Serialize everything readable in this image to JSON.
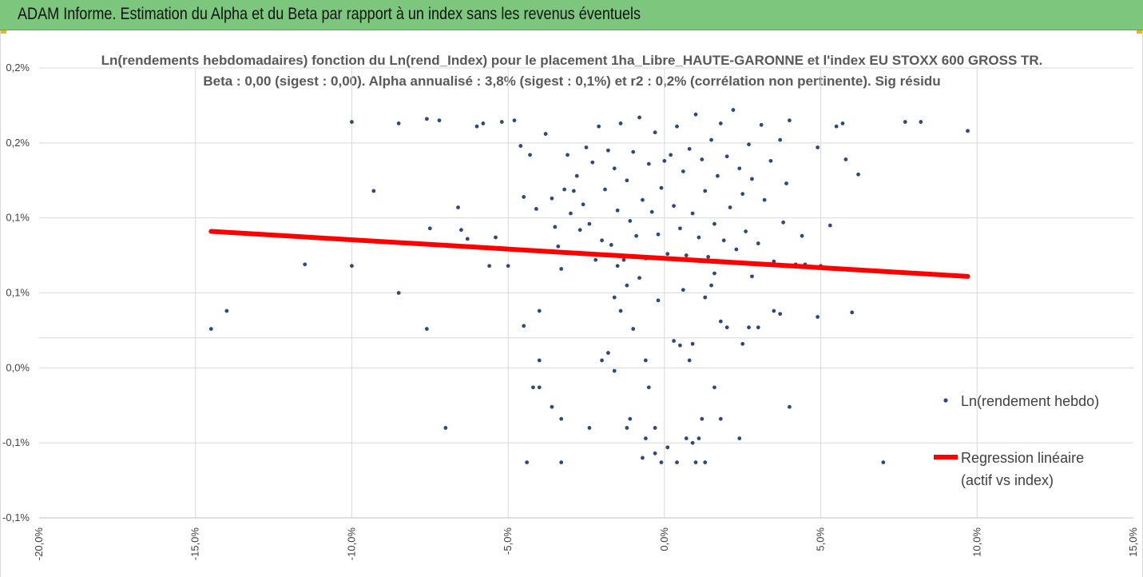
{
  "header": {
    "title": "ADAM Informe. Estimation du Alpha et du Beta par rapport à un index sans les revenus éventuels"
  },
  "colors": {
    "header_bg": "#7dc67d",
    "point": "#2e4a7d",
    "regression": "#ff0000",
    "grid": "#d9d9d9",
    "accent_corner": "#f4b400"
  },
  "chart_data": {
    "type": "scatter",
    "title_lines": [
      "Ln(rendements hebdomadaires) fonction du Ln(rend_Index) pour le placement 1ha_Libre_HAUTE-GARONNE et l'index EU STOXX 600 GROSS TR.",
      "Beta : 0,00 (sigest : 0,00). Alpha annualisé : 3,8% (sigest : 0,1%) et r2 : 0,2% (corrélation non pertinente). Sig résidu"
    ],
    "xlim": [
      -0.2,
      0.15
    ],
    "ylim": [
      -0.001,
      0.002
    ],
    "x_ticks": [
      -0.2,
      -0.15,
      -0.1,
      -0.05,
      0.0,
      0.05,
      0.1,
      0.15
    ],
    "x_tick_labels": [
      "-20,0%",
      "-15,0%",
      "-10,0%",
      "-5,0%",
      "0,0%",
      "5,0%",
      "10,0%",
      "15,0%"
    ],
    "y_ticks": [
      -0.001,
      -0.0005,
      0.0,
      0.0005,
      0.001,
      0.0015,
      0.002
    ],
    "y_tick_labels": [
      "-0,1%",
      "-0,1%",
      "0,0%",
      "0,1%",
      "0,1%",
      "0,2%",
      "0,2%"
    ],
    "x_grid_ticks": [
      -0.15,
      -0.1,
      -0.05,
      0.0,
      0.05,
      0.1
    ],
    "y_grid_extra": [
      0.0002
    ],
    "grid": true,
    "legend_position": "right",
    "series": [
      {
        "name": "Ln(rendement hebdo)",
        "kind": "scatter",
        "points": [
          [
            -0.145,
            0.00026
          ],
          [
            -0.14,
            0.00038
          ],
          [
            -0.115,
            0.00069
          ],
          [
            -0.1,
            0.00068
          ],
          [
            -0.1,
            0.00164
          ],
          [
            -0.093,
            0.00118
          ],
          [
            -0.085,
            0.00163
          ],
          [
            -0.085,
            0.0005
          ],
          [
            -0.076,
            0.00166
          ],
          [
            -0.075,
            0.00093
          ],
          [
            -0.076,
            0.00026
          ],
          [
            -0.072,
            0.00165
          ],
          [
            -0.066,
            0.00107
          ],
          [
            -0.065,
            0.00092
          ],
          [
            -0.063,
            0.00086
          ],
          [
            -0.06,
            0.00161
          ],
          [
            -0.058,
            0.00163
          ],
          [
            -0.056,
            0.00068
          ],
          [
            -0.054,
            0.00087
          ],
          [
            -0.052,
            0.00164
          ],
          [
            -0.05,
            0.00068
          ],
          [
            -0.048,
            0.00165
          ],
          [
            -0.046,
            0.00148
          ],
          [
            -0.045,
            0.00114
          ],
          [
            -0.043,
            0.00142
          ],
          [
            -0.041,
            0.00106
          ],
          [
            -0.04,
            0.00038
          ],
          [
            -0.038,
            0.00156
          ],
          [
            -0.036,
            0.00113
          ],
          [
            -0.035,
            0.00094
          ],
          [
            -0.034,
            0.00081
          ],
          [
            -0.033,
            0.00066
          ],
          [
            -0.032,
            0.00119
          ],
          [
            -0.031,
            0.00142
          ],
          [
            -0.03,
            0.00103
          ],
          [
            -0.029,
            0.00118
          ],
          [
            -0.028,
            0.00128
          ],
          [
            -0.027,
            0.00092
          ],
          [
            -0.026,
            0.00109
          ],
          [
            -0.025,
            0.00147
          ],
          [
            -0.024,
            0.00096
          ],
          [
            -0.023,
            0.00137
          ],
          [
            -0.022,
            0.00072
          ],
          [
            -0.021,
            0.00161
          ],
          [
            -0.02,
            0.00085
          ],
          [
            -0.019,
            0.00119
          ],
          [
            -0.018,
            0.00145
          ],
          [
            -0.017,
            0.00082
          ],
          [
            -0.016,
            0.00133
          ],
          [
            -0.015,
            0.00105
          ],
          [
            -0.014,
            0.00163
          ],
          [
            -0.013,
            0.00072
          ],
          [
            -0.012,
            0.00125
          ],
          [
            -0.011,
            0.00098
          ],
          [
            -0.01,
            0.00144
          ],
          [
            -0.009,
            0.00088
          ],
          [
            -0.008,
            0.00167
          ],
          [
            -0.007,
            0.00112
          ],
          [
            -0.006,
            0.00073
          ],
          [
            -0.005,
            0.00136
          ],
          [
            -0.004,
            0.00104
          ],
          [
            -0.003,
            0.00157
          ],
          [
            -0.002,
            0.00089
          ],
          [
            -0.001,
            0.0012
          ],
          [
            0.0,
            0.00138
          ],
          [
            0.001,
            0.00076
          ],
          [
            0.002,
            0.00142
          ],
          [
            0.003,
            0.00108
          ],
          [
            0.004,
            0.00161
          ],
          [
            0.005,
            0.00093
          ],
          [
            0.006,
            0.00131
          ],
          [
            0.007,
            0.00075
          ],
          [
            0.008,
            0.00146
          ],
          [
            0.009,
            0.00103
          ],
          [
            0.01,
            0.00169
          ],
          [
            0.011,
            0.00087
          ],
          [
            0.012,
            0.00139
          ],
          [
            0.013,
            0.00118
          ],
          [
            0.014,
            0.00074
          ],
          [
            0.015,
            0.00152
          ],
          [
            0.016,
            0.00096
          ],
          [
            0.017,
            0.00128
          ],
          [
            0.018,
            0.00163
          ],
          [
            0.019,
            0.00085
          ],
          [
            0.02,
            0.00141
          ],
          [
            0.021,
            0.00107
          ],
          [
            0.022,
            0.00172
          ],
          [
            0.023,
            0.00079
          ],
          [
            0.024,
            0.00133
          ],
          [
            0.025,
            0.00116
          ],
          [
            0.026,
            0.00091
          ],
          [
            0.027,
            0.00149
          ],
          [
            0.028,
            0.00126
          ],
          [
            0.03,
            0.00083
          ],
          [
            0.031,
            0.00162
          ],
          [
            0.032,
            0.00112
          ],
          [
            0.034,
            0.00138
          ],
          [
            0.035,
            0.00071
          ],
          [
            0.037,
            0.00152
          ],
          [
            0.038,
            0.00097
          ],
          [
            0.039,
            0.00123
          ],
          [
            0.04,
            0.00165
          ],
          [
            0.042,
            0.00069
          ],
          [
            0.044,
            0.00088
          ],
          [
            0.045,
            0.00069
          ],
          [
            0.049,
            0.00034
          ],
          [
            0.049,
            0.00147
          ],
          [
            0.05,
            0.00068
          ],
          [
            0.053,
            0.00095
          ],
          [
            0.055,
            0.00161
          ],
          [
            0.057,
            0.00163
          ],
          [
            0.058,
            0.00139
          ],
          [
            0.06,
            0.00037
          ],
          [
            0.062,
            0.00129
          ],
          [
            0.077,
            0.00164
          ],
          [
            0.082,
            0.00164
          ],
          [
            0.097,
            0.00158
          ],
          [
            -0.07,
            -0.0004
          ],
          [
            -0.044,
            -0.00063
          ],
          [
            -0.033,
            -0.00063
          ],
          [
            0.07,
            -0.00063
          ],
          [
            -0.042,
            -0.00013
          ],
          [
            -0.04,
            -0.00013
          ],
          [
            -0.036,
            -0.00026
          ],
          [
            0.04,
            -0.00026
          ],
          [
            -0.04,
            5e-05
          ],
          [
            -0.045,
            0.00028
          ],
          [
            -0.033,
            -0.00034
          ],
          [
            -0.02,
            5e-05
          ],
          [
            -0.016,
            -2e-05
          ],
          [
            0.018,
            -0.00034
          ],
          [
            0.02,
            0.00027
          ],
          [
            0.027,
            0.00027
          ],
          [
            0.03,
            0.00027
          ],
          [
            -0.018,
            0.0001
          ],
          [
            0.035,
            0.00038
          ],
          [
            0.037,
            0.00036
          ],
          [
            -0.012,
            0.00055
          ],
          [
            0.015,
            0.00055
          ],
          [
            0.003,
            0.00018
          ],
          [
            0.005,
            0.00015
          ],
          [
            -0.006,
            5e-05
          ],
          [
            0.008,
            5e-05
          ],
          [
            -0.011,
            -0.00034
          ],
          [
            0.012,
            -0.00034
          ],
          [
            -0.006,
            -0.00047
          ],
          [
            0.007,
            -0.00047
          ],
          [
            -0.001,
            -0.00063
          ],
          [
            0.004,
            -0.00063
          ],
          [
            0.01,
            -0.00063
          ],
          [
            0.013,
            -0.00063
          ],
          [
            -0.007,
            -0.0006
          ],
          [
            -0.003,
            -0.00057
          ],
          [
            0.001,
            -0.00053
          ],
          [
            0.009,
            -0.0005
          ],
          [
            -0.024,
            -0.0004
          ],
          [
            -0.012,
            -0.0004
          ],
          [
            -0.003,
            -0.0004
          ],
          [
            0.011,
            -0.00047
          ],
          [
            0.024,
            -0.00047
          ],
          [
            -0.015,
            0.00068
          ],
          [
            -0.008,
            0.0006
          ],
          [
            0.016,
            0.00063
          ],
          [
            0.028,
            0.00061
          ],
          [
            -0.016,
            0.00047
          ],
          [
            0.013,
            0.00047
          ],
          [
            -0.014,
            0.00038
          ],
          [
            0.018,
            0.00031
          ],
          [
            -0.01,
            0.00026
          ],
          [
            0.025,
            0.00016
          ],
          [
            0.009,
            0.00016
          ],
          [
            -0.005,
            -0.00013
          ],
          [
            0.016,
            -0.00013
          ],
          [
            -0.002,
            0.00045
          ],
          [
            0.006,
            0.00052
          ]
        ]
      },
      {
        "name": "Regression linéaire\n(actif vs index)",
        "kind": "line",
        "points": [
          [
            -0.145,
            0.00091
          ],
          [
            0.097,
            0.00061
          ]
        ]
      }
    ]
  }
}
